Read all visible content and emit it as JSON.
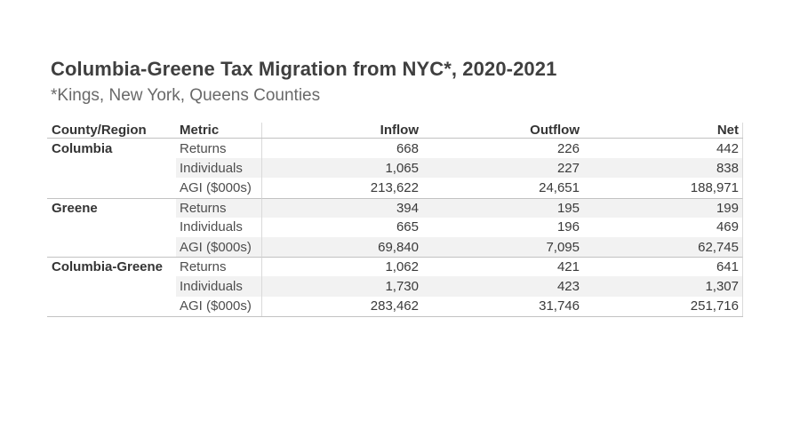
{
  "title": "Columbia-Greene Tax Migration from NYC*, 2020-2021",
  "subtitle": "*Kings, New York, Queens Counties",
  "table": {
    "columns": [
      "County/Region",
      "Metric",
      "Inflow",
      "Outflow",
      "Net"
    ],
    "groups": [
      {
        "county": "Columbia",
        "rows": [
          {
            "metric": "Returns",
            "inflow": "668",
            "outflow": "226",
            "net": "442"
          },
          {
            "metric": "Individuals",
            "inflow": "1,065",
            "outflow": "227",
            "net": "838"
          },
          {
            "metric": "AGI ($000s)",
            "inflow": "213,622",
            "outflow": "24,651",
            "net": "188,971"
          }
        ]
      },
      {
        "county": "Greene",
        "rows": [
          {
            "metric": "Returns",
            "inflow": "394",
            "outflow": "195",
            "net": "199"
          },
          {
            "metric": "Individuals",
            "inflow": "665",
            "outflow": "196",
            "net": "469"
          },
          {
            "metric": "AGI ($000s)",
            "inflow": "69,840",
            "outflow": "7,095",
            "net": "62,745"
          }
        ]
      },
      {
        "county": "Columbia-Greene",
        "rows": [
          {
            "metric": "Returns",
            "inflow": "1,062",
            "outflow": "421",
            "net": "641"
          },
          {
            "metric": "Individuals",
            "inflow": "1,730",
            "outflow": "423",
            "net": "1,307"
          },
          {
            "metric": "AGI ($000s)",
            "inflow": "283,462",
            "outflow": "31,746",
            "net": "251,716"
          }
        ]
      }
    ]
  },
  "chart_data": {
    "type": "table",
    "title": "Columbia-Greene Tax Migration from NYC*, 2020-2021",
    "subtitle": "*Kings, New York, Queens Counties",
    "columns": [
      "County/Region",
      "Metric",
      "Inflow",
      "Outflow",
      "Net"
    ],
    "rows": [
      [
        "Columbia",
        "Returns",
        668,
        226,
        442
      ],
      [
        "Columbia",
        "Individuals",
        1065,
        227,
        838
      ],
      [
        "Columbia",
        "AGI ($000s)",
        213622,
        24651,
        188971
      ],
      [
        "Greene",
        "Returns",
        394,
        195,
        199
      ],
      [
        "Greene",
        "Individuals",
        665,
        196,
        469
      ],
      [
        "Greene",
        "AGI ($000s)",
        69840,
        7095,
        62745
      ],
      [
        "Columbia-Greene",
        "Returns",
        1062,
        421,
        641
      ],
      [
        "Columbia-Greene",
        "Individuals",
        1730,
        423,
        1307
      ],
      [
        "Columbia-Greene",
        "AGI ($000s)",
        283462,
        31746,
        251716
      ]
    ],
    "layout": {
      "row_banding": true,
      "group_dividers_after_rows": [
        3,
        6
      ],
      "numeric_alignment": "right"
    }
  },
  "theme": {
    "title_color": "#3f3f3f",
    "subtitle_color": "#696969",
    "header_color": "#343434",
    "text_color": "#3a3a3a",
    "metric_color": "#4e4e4e",
    "band_color": "#f2f2f2",
    "h_rule": "#c2c2c2",
    "v_rule": "#dadada"
  }
}
